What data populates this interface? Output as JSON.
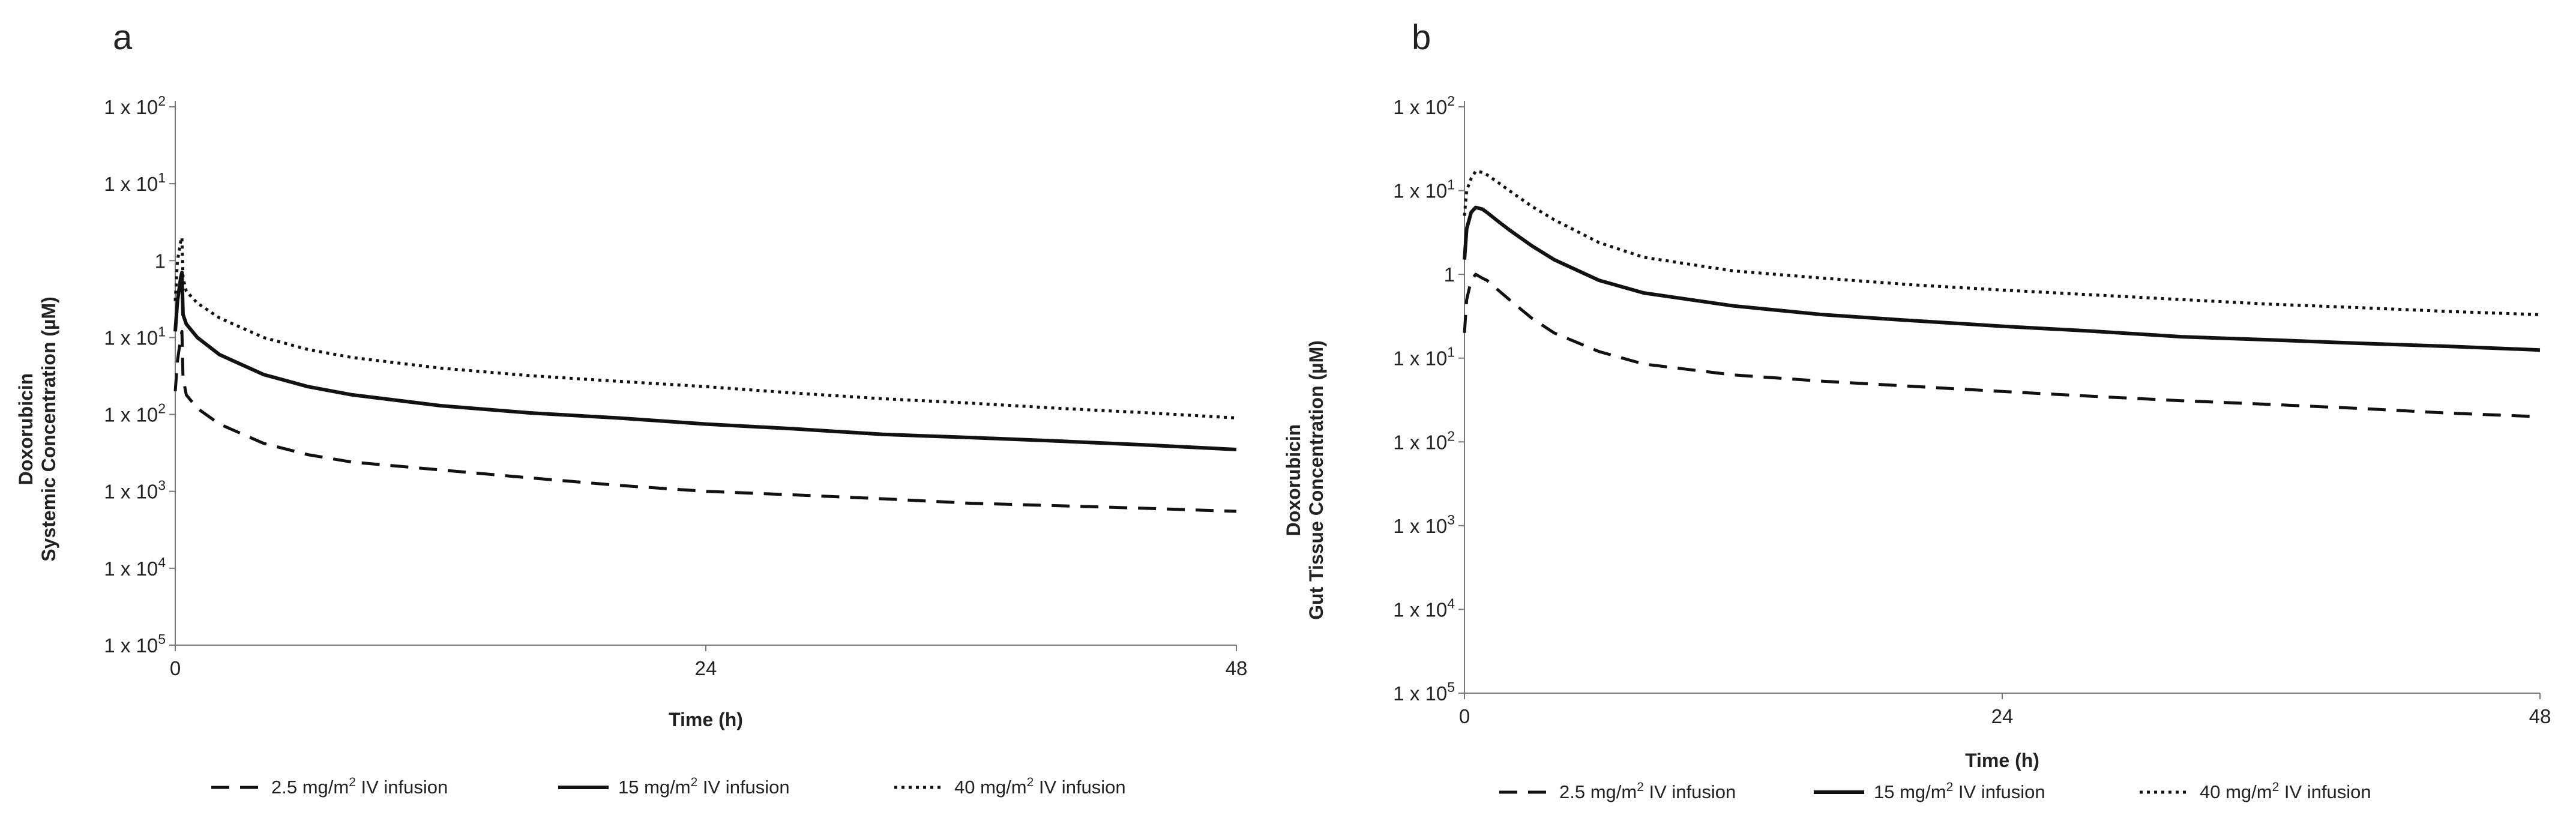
{
  "chart_data": [
    {
      "panel": "a",
      "type": "line",
      "xlabel": "Time (h)",
      "ylabel": [
        "Doxorubicin",
        "Systemic Concentration (µM)"
      ],
      "yscale": "log",
      "xlim": [
        0,
        48
      ],
      "ylim": [
        1e-05,
        100
      ],
      "xticks": [
        {
          "value": 0,
          "label": "0"
        },
        {
          "value": 24,
          "label": "24"
        },
        {
          "value": 48,
          "label": "48"
        }
      ],
      "yticks": [
        {
          "value": 100,
          "base": "1 x 10",
          "exp": "2"
        },
        {
          "value": 10,
          "base": "1 x 10",
          "exp": "1"
        },
        {
          "value": 1,
          "base": "1",
          "exp": ""
        },
        {
          "value": 0.1,
          "base": "1 x 10",
          "exp": "1"
        },
        {
          "value": 0.01,
          "base": "1 x 10",
          "exp": "2"
        },
        {
          "value": 0.001,
          "base": "1 x 10",
          "exp": "3"
        },
        {
          "value": 0.0001,
          "base": "1 x 10",
          "exp": "4"
        },
        {
          "value": 1e-05,
          "base": "1 x 10",
          "exp": "5"
        }
      ],
      "legend_position": "bottom",
      "series": [
        {
          "name": "2.5 mg/m² IV infusion",
          "label_parts": [
            "2.5 mg/m",
            "2",
            " IV infusion"
          ],
          "style": "dashed",
          "x": [
            0,
            0.1,
            0.25,
            0.3,
            0.35,
            0.5,
            1,
            2,
            4,
            6,
            8,
            12,
            16,
            20,
            24,
            28,
            32,
            36,
            40,
            44,
            48
          ],
          "y": [
            0.02,
            0.05,
            0.1,
            0.12,
            0.03,
            0.018,
            0.012,
            0.0075,
            0.0042,
            0.003,
            0.0024,
            0.0019,
            0.0015,
            0.0012,
            0.001,
            0.0009,
            0.0008,
            0.0007,
            0.00065,
            0.0006,
            0.00055
          ]
        },
        {
          "name": "15 mg/m² IV infusion",
          "label_parts": [
            "15 mg/m",
            "2",
            " IV infusion"
          ],
          "style": "solid",
          "x": [
            0,
            0.1,
            0.25,
            0.3,
            0.35,
            0.5,
            1,
            2,
            4,
            6,
            8,
            12,
            16,
            20,
            24,
            28,
            32,
            36,
            40,
            44,
            48
          ],
          "y": [
            0.12,
            0.3,
            0.6,
            0.7,
            0.2,
            0.15,
            0.1,
            0.06,
            0.033,
            0.023,
            0.018,
            0.013,
            0.0105,
            0.009,
            0.0075,
            0.0065,
            0.0055,
            0.005,
            0.0045,
            0.004,
            0.0035
          ]
        },
        {
          "name": "40 mg/m² IV infusion",
          "label_parts": [
            "40 mg/m",
            "2",
            " IV infusion"
          ],
          "style": "dotted",
          "x": [
            0,
            0.1,
            0.25,
            0.3,
            0.35,
            0.5,
            1,
            2,
            4,
            6,
            8,
            12,
            16,
            20,
            24,
            28,
            32,
            36,
            40,
            44,
            48
          ],
          "y": [
            0.3,
            1.0,
            1.8,
            2.0,
            0.6,
            0.4,
            0.28,
            0.18,
            0.1,
            0.07,
            0.055,
            0.04,
            0.032,
            0.027,
            0.023,
            0.019,
            0.016,
            0.014,
            0.012,
            0.0105,
            0.009
          ]
        }
      ]
    },
    {
      "panel": "b",
      "type": "line",
      "xlabel": "Time (h)",
      "ylabel": [
        "Doxorubicin",
        "Gut Tissue Concentration (µM)"
      ],
      "yscale": "log",
      "xlim": [
        0,
        48
      ],
      "ylim": [
        1e-05,
        100
      ],
      "xticks": [
        {
          "value": 0,
          "label": "0"
        },
        {
          "value": 24,
          "label": "24"
        },
        {
          "value": 48,
          "label": "48"
        }
      ],
      "yticks": [
        {
          "value": 100,
          "base": "1 x 10",
          "exp": "2"
        },
        {
          "value": 10,
          "base": "1 x 10",
          "exp": "1"
        },
        {
          "value": 1,
          "base": "1",
          "exp": ""
        },
        {
          "value": 0.1,
          "base": "1 x 10",
          "exp": "1"
        },
        {
          "value": 0.01,
          "base": "1 x 10",
          "exp": "2"
        },
        {
          "value": 0.001,
          "base": "1 x 10",
          "exp": "3"
        },
        {
          "value": 0.0001,
          "base": "1 x 10",
          "exp": "4"
        },
        {
          "value": 1e-05,
          "base": "1 x 10",
          "exp": "5"
        }
      ],
      "legend_position": "bottom",
      "series": [
        {
          "name": "2.5 mg/m² IV infusion",
          "label_parts": [
            "2.5 mg/m",
            "2",
            " IV infusion"
          ],
          "style": "dashed",
          "x": [
            0,
            0.1,
            0.3,
            0.5,
            0.8,
            1,
            1.5,
            2,
            3,
            4,
            6,
            8,
            12,
            16,
            20,
            24,
            28,
            32,
            36,
            40,
            44,
            48
          ],
          "y": [
            0.2,
            0.5,
            0.85,
            1.0,
            0.9,
            0.85,
            0.65,
            0.5,
            0.3,
            0.2,
            0.12,
            0.085,
            0.063,
            0.053,
            0.046,
            0.04,
            0.035,
            0.031,
            0.028,
            0.025,
            0.022,
            0.02
          ]
        },
        {
          "name": "15 mg/m² IV infusion",
          "label_parts": [
            "15 mg/m",
            "2",
            " IV infusion"
          ],
          "style": "solid",
          "x": [
            0,
            0.1,
            0.3,
            0.5,
            0.8,
            1,
            1.5,
            2,
            3,
            4,
            6,
            8,
            12,
            16,
            20,
            24,
            28,
            32,
            36,
            40,
            44,
            48
          ],
          "y": [
            1.5,
            3.5,
            5.5,
            6.3,
            6.0,
            5.5,
            4.3,
            3.4,
            2.2,
            1.5,
            0.85,
            0.6,
            0.42,
            0.33,
            0.28,
            0.24,
            0.21,
            0.18,
            0.165,
            0.15,
            0.138,
            0.125
          ]
        },
        {
          "name": "40 mg/m² IV infusion",
          "label_parts": [
            "40 mg/m",
            "2",
            " IV infusion"
          ],
          "style": "dotted",
          "x": [
            0,
            0.1,
            0.3,
            0.5,
            0.8,
            1,
            1.5,
            2,
            3,
            4,
            6,
            8,
            12,
            16,
            20,
            24,
            28,
            32,
            36,
            40,
            44,
            48
          ],
          "y": [
            5,
            10,
            14,
            17,
            16.5,
            15.5,
            12.5,
            10,
            6.5,
            4.5,
            2.4,
            1.6,
            1.1,
            0.9,
            0.75,
            0.65,
            0.57,
            0.5,
            0.44,
            0.4,
            0.36,
            0.33
          ]
        }
      ]
    }
  ]
}
